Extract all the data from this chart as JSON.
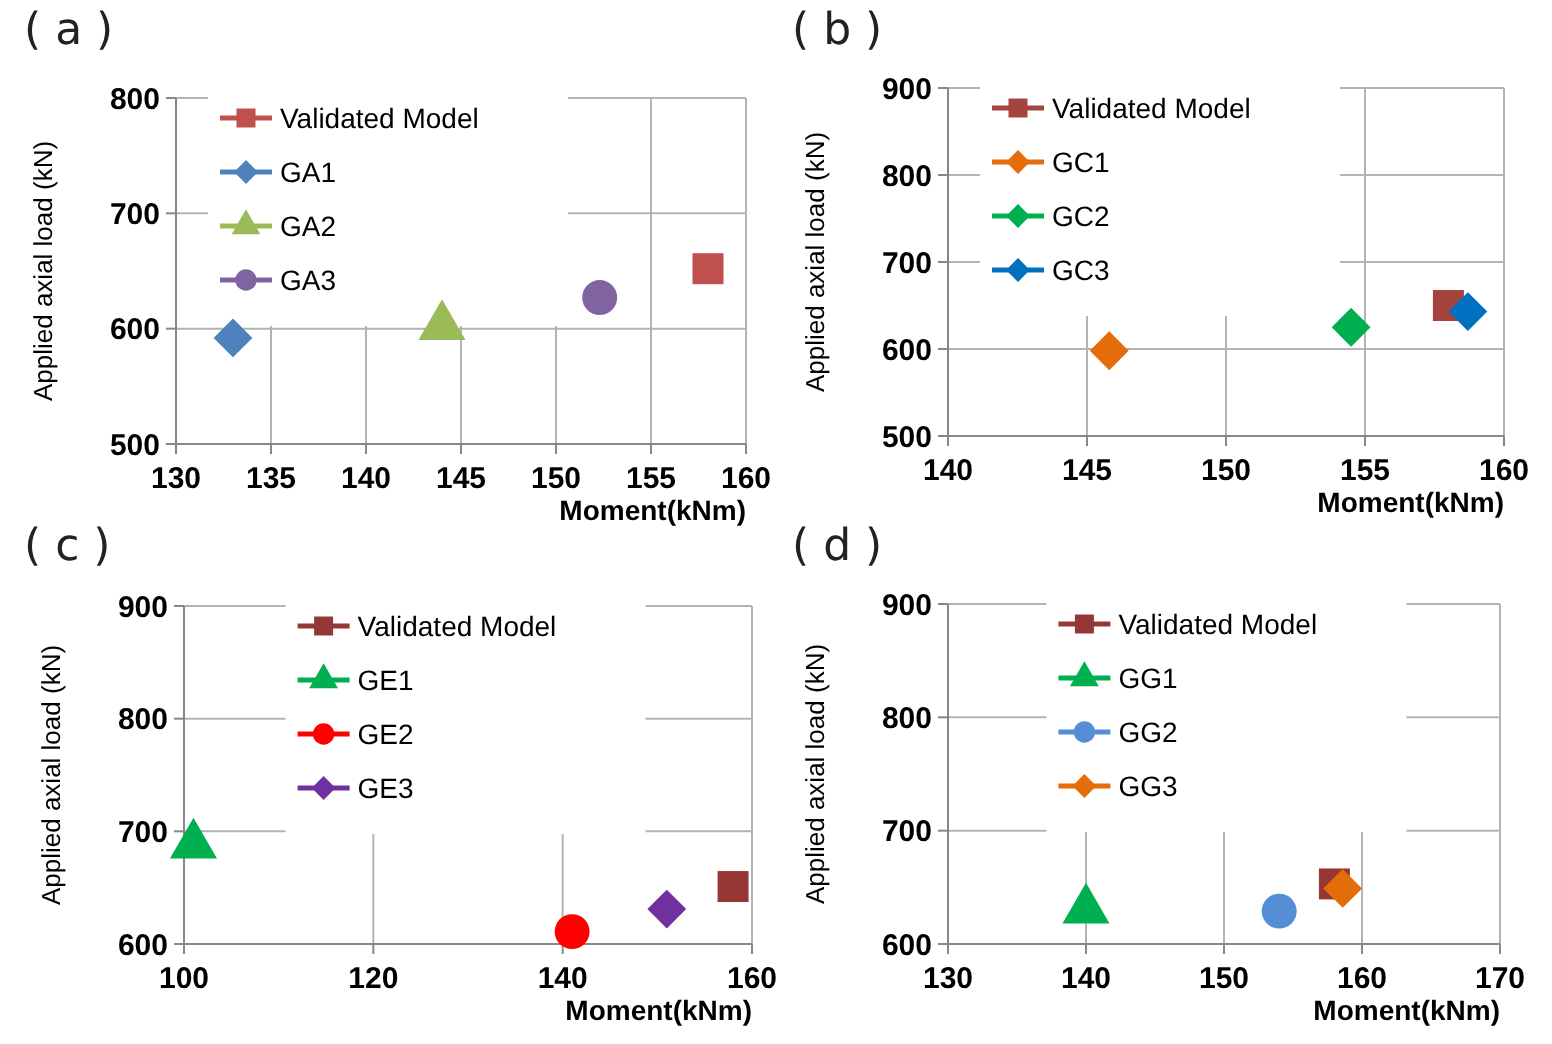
{
  "chart_data": [
    {
      "type": "scatter",
      "title": "( a )",
      "xlabel": "Moment(kNm)",
      "ylabel": "Applied axial load  (kN)",
      "xlim": [
        130,
        160
      ],
      "xticks": [
        130,
        135,
        140,
        145,
        150,
        155,
        160
      ],
      "ylim": [
        500,
        800
      ],
      "yticks": [
        500,
        600,
        700,
        800
      ],
      "grid": true,
      "legend": "top left",
      "series": [
        {
          "name": "Validated Model",
          "color": "#c0504d",
          "marker": "square",
          "x": [
            158
          ],
          "values": [
            652
          ]
        },
        {
          "name": "GA1",
          "color": "#4f81bd",
          "marker": "diamond",
          "x": [
            133
          ],
          "values": [
            592
          ]
        },
        {
          "name": "GA2",
          "color": "#9bbb59",
          "marker": "triangle",
          "x": [
            144
          ],
          "values": [
            602
          ]
        },
        {
          "name": "GA3",
          "color": "#8064a2",
          "marker": "circle",
          "x": [
            152.3
          ],
          "values": [
            627
          ]
        }
      ]
    },
    {
      "type": "scatter",
      "title": "( b )",
      "xlabel": "Moment(kNm)",
      "ylabel": "Applied axial load  (kN)",
      "xlim": [
        140,
        160
      ],
      "xticks": [
        140,
        145,
        150,
        155,
        160
      ],
      "ylim": [
        500,
        900
      ],
      "yticks": [
        500,
        600,
        700,
        800,
        900
      ],
      "grid": true,
      "legend": "top left",
      "series": [
        {
          "name": "Validated Model",
          "color": "#a5433f",
          "marker": "square",
          "x": [
            158
          ],
          "values": [
            650
          ]
        },
        {
          "name": "GC1",
          "color": "#e46c0a",
          "marker": "diamond",
          "x": [
            145.8
          ],
          "values": [
            598
          ]
        },
        {
          "name": "GC2",
          "color": "#00b050",
          "marker": "diamond",
          "x": [
            154.5
          ],
          "values": [
            625
          ]
        },
        {
          "name": "GC3",
          "color": "#0070c0",
          "marker": "diamond",
          "x": [
            158.7
          ],
          "values": [
            643
          ]
        }
      ]
    },
    {
      "type": "scatter",
      "title": "( c )",
      "xlabel": "Moment(kNm)",
      "ylabel": "Applied axial load  (kN)",
      "xlim": [
        100,
        160
      ],
      "xticks": [
        100,
        120,
        140,
        160
      ],
      "ylim": [
        600,
        900
      ],
      "yticks": [
        600,
        700,
        800,
        900
      ],
      "grid": true,
      "legend": "top",
      "series": [
        {
          "name": "Validated Model",
          "color": "#953735",
          "marker": "square",
          "x": [
            158
          ],
          "values": [
            651
          ]
        },
        {
          "name": "GE1",
          "color": "#00b050",
          "marker": "triangle",
          "x": [
            101
          ],
          "values": [
            688
          ]
        },
        {
          "name": "GE2",
          "color": "#ff0000",
          "marker": "circle",
          "x": [
            141
          ],
          "values": [
            611
          ]
        },
        {
          "name": "GE3",
          "color": "#7030a0",
          "marker": "diamond",
          "x": [
            151
          ],
          "values": [
            631
          ]
        }
      ]
    },
    {
      "type": "scatter",
      "title": "( d )",
      "xlabel": "Moment(kNm)",
      "ylabel": "Applied axial load  (kN)",
      "xlim": [
        130,
        170
      ],
      "xticks": [
        130,
        140,
        150,
        160,
        170
      ],
      "ylim": [
        600,
        900
      ],
      "yticks": [
        600,
        700,
        800,
        900
      ],
      "grid": true,
      "legend": "top",
      "series": [
        {
          "name": "Validated Model",
          "color": "#953735",
          "marker": "square",
          "x": [
            158
          ],
          "values": [
            653
          ]
        },
        {
          "name": "GG1",
          "color": "#00b050",
          "marker": "triangle",
          "x": [
            140
          ],
          "values": [
            630
          ]
        },
        {
          "name": "GG2",
          "color": "#558ed5",
          "marker": "circle",
          "x": [
            154
          ],
          "values": [
            629
          ]
        },
        {
          "name": "GG3",
          "color": "#e46c0a",
          "marker": "diamond",
          "x": [
            158.6
          ],
          "values": [
            649
          ]
        }
      ]
    }
  ]
}
